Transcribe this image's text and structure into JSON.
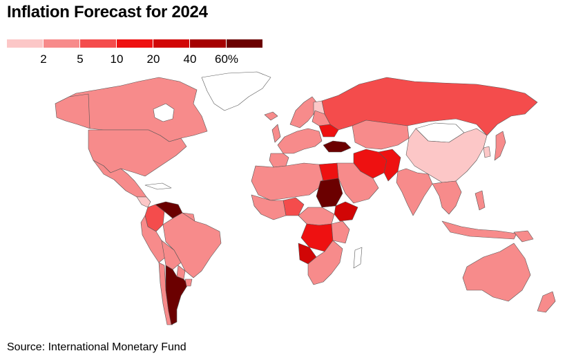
{
  "title": "Inflation Forecast for 2024",
  "source": "Source: International Monetary Fund",
  "legend": {
    "colors": [
      "#fcc7c7",
      "#f78b8b",
      "#f44c4c",
      "#ee1111",
      "#d10606",
      "#a50000",
      "#6b0000"
    ],
    "ticks": [
      "2",
      "5",
      "10",
      "20",
      "40",
      "60%"
    ]
  },
  "map": {
    "no_data_color": "#ffffff",
    "bins": {
      "lowest": "#fcc7c7",
      "low": "#f78b8b",
      "mid": "#f44c4c",
      "high": "#ee1111",
      "very_high": "#d10606",
      "severe": "#a50000",
      "extreme": "#6b0000"
    }
  }
}
